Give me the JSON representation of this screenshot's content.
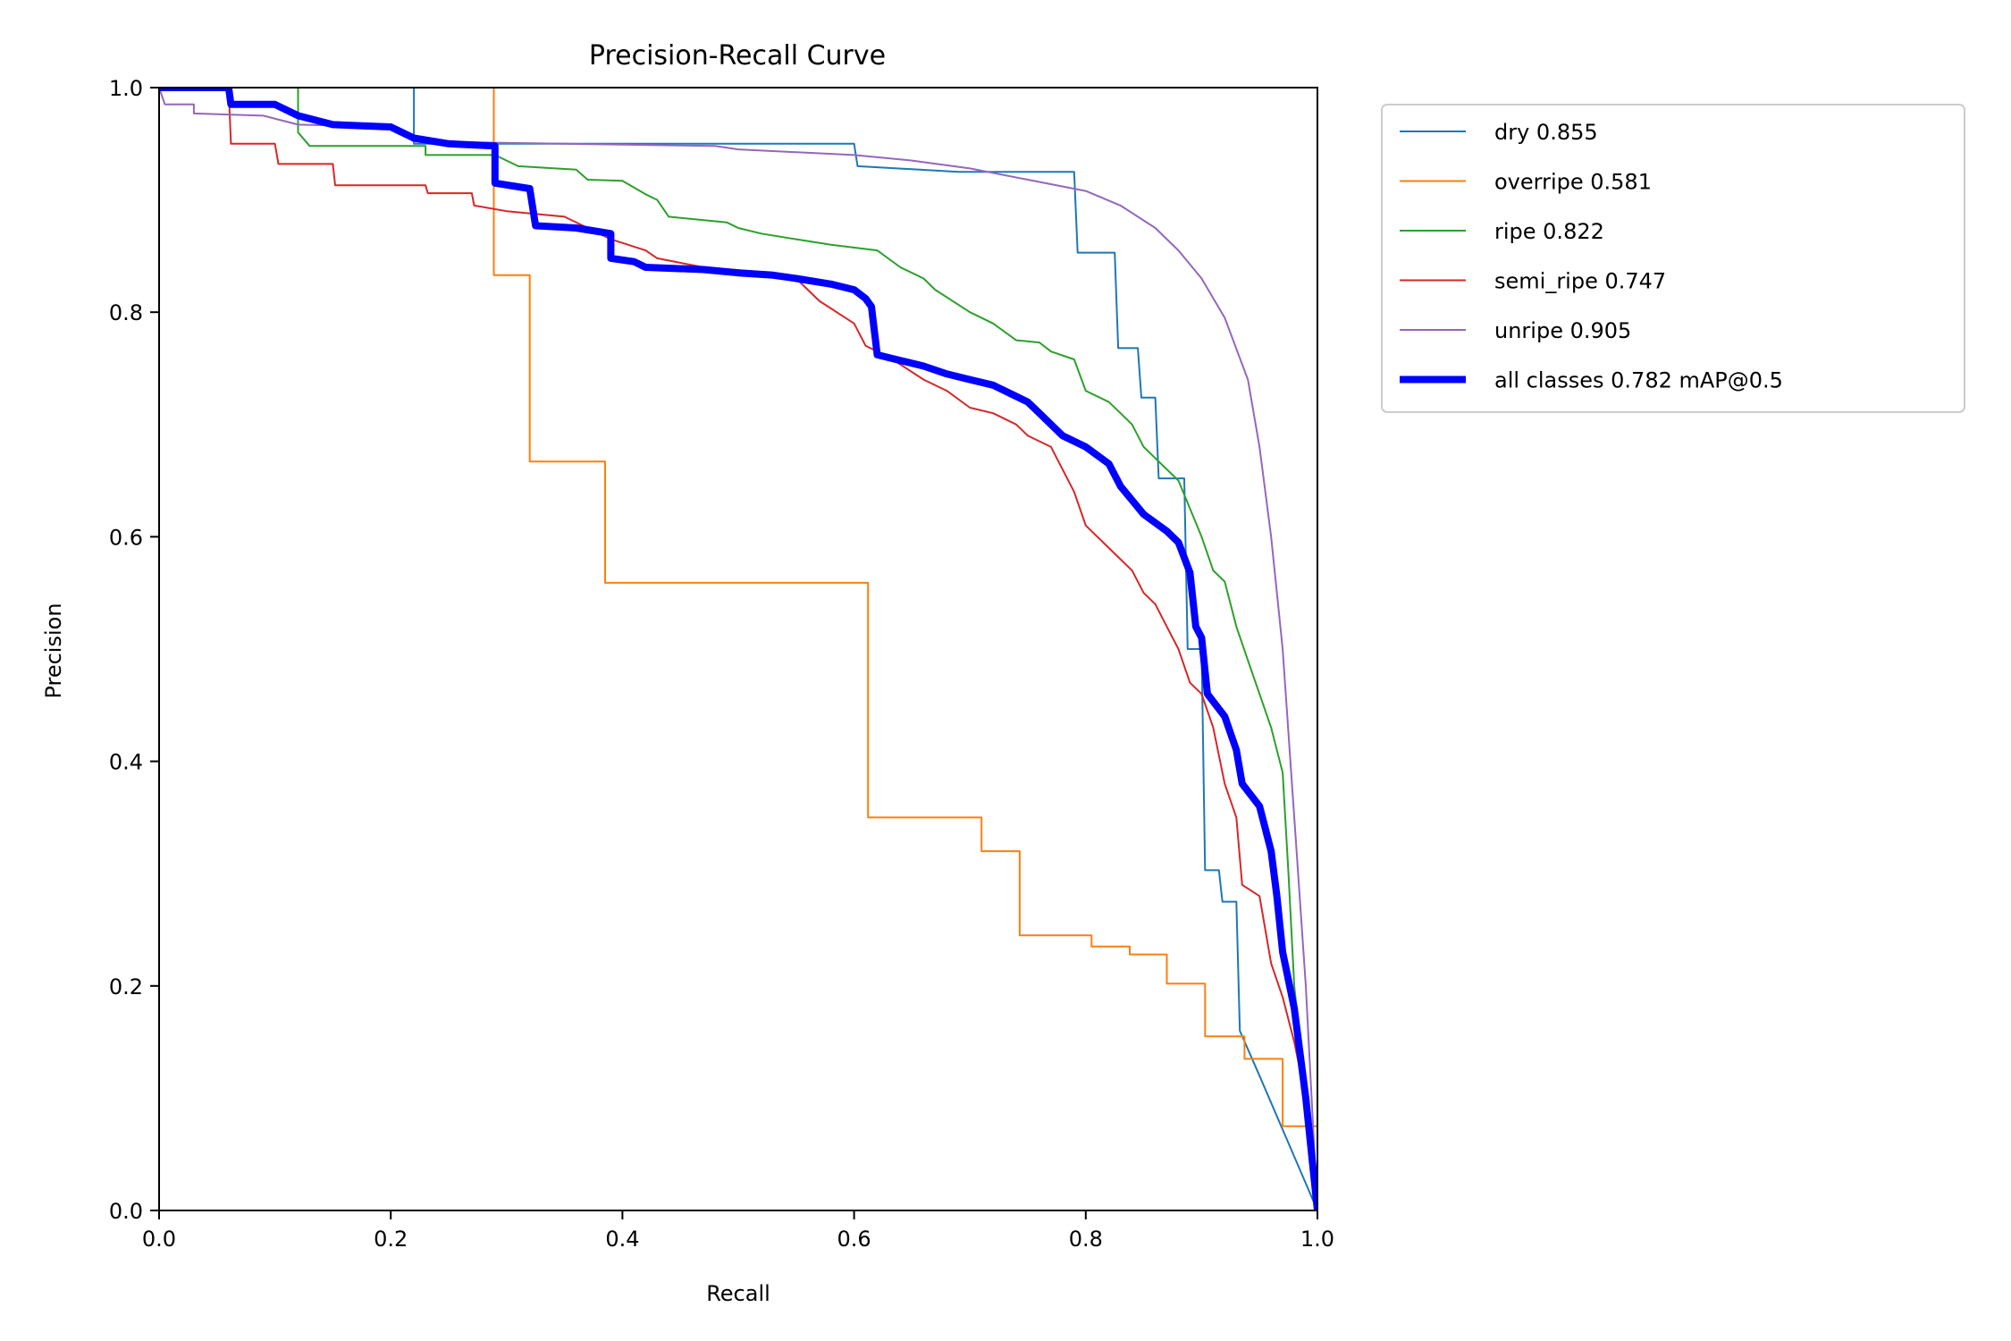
{
  "chart_data": {
    "type": "line",
    "title": "Precision-Recall Curve",
    "xlabel": "Recall",
    "ylabel": "Precision",
    "xlim": [
      0,
      1
    ],
    "ylim": [
      0,
      1
    ],
    "xticks": [
      "0.0",
      "0.2",
      "0.4",
      "0.6",
      "0.8",
      "1.0"
    ],
    "yticks": [
      "0.0",
      "0.2",
      "0.4",
      "0.6",
      "0.8",
      "1.0"
    ],
    "legend_position": "outside-top-right",
    "series": [
      {
        "name": "dry",
        "legend_label": "dry 0.855",
        "ap": 0.855,
        "color": "#1f77b4",
        "emphasis": false,
        "points": [
          [
            0,
            1.0
          ],
          [
            0.22,
            1.0
          ],
          [
            0.22,
            0.95
          ],
          [
            0.6,
            0.95
          ],
          [
            0.603,
            0.93
          ],
          [
            0.69,
            0.925
          ],
          [
            0.79,
            0.925
          ],
          [
            0.793,
            0.853
          ],
          [
            0.825,
            0.853
          ],
          [
            0.828,
            0.768
          ],
          [
            0.845,
            0.768
          ],
          [
            0.848,
            0.724
          ],
          [
            0.86,
            0.724
          ],
          [
            0.863,
            0.652
          ],
          [
            0.885,
            0.652
          ],
          [
            0.888,
            0.5
          ],
          [
            0.9,
            0.5
          ],
          [
            0.903,
            0.303
          ],
          [
            0.915,
            0.303
          ],
          [
            0.918,
            0.275
          ],
          [
            0.93,
            0.275
          ],
          [
            0.933,
            0.16
          ],
          [
            0.95,
            0.12
          ],
          [
            1.0,
            0.0
          ]
        ]
      },
      {
        "name": "overripe",
        "legend_label": "overripe 0.581",
        "ap": 0.581,
        "color": "#ff7f0e",
        "emphasis": false,
        "points": [
          [
            0,
            1.0
          ],
          [
            0.289,
            1.0
          ],
          [
            0.289,
            0.833
          ],
          [
            0.32,
            0.833
          ],
          [
            0.32,
            0.667
          ],
          [
            0.385,
            0.667
          ],
          [
            0.385,
            0.559
          ],
          [
            0.612,
            0.559
          ],
          [
            0.612,
            0.35
          ],
          [
            0.71,
            0.35
          ],
          [
            0.71,
            0.32
          ],
          [
            0.743,
            0.32
          ],
          [
            0.743,
            0.245
          ],
          [
            0.805,
            0.245
          ],
          [
            0.805,
            0.235
          ],
          [
            0.838,
            0.235
          ],
          [
            0.838,
            0.228
          ],
          [
            0.87,
            0.228
          ],
          [
            0.87,
            0.202
          ],
          [
            0.903,
            0.202
          ],
          [
            0.903,
            0.155
          ],
          [
            0.937,
            0.155
          ],
          [
            0.937,
            0.135
          ],
          [
            0.97,
            0.135
          ],
          [
            0.97,
            0.075
          ],
          [
            1.0,
            0.075
          ],
          [
            1.0,
            0.0
          ]
        ]
      },
      {
        "name": "ripe",
        "legend_label": "ripe 0.822",
        "ap": 0.822,
        "color": "#2ca02c",
        "emphasis": false,
        "points": [
          [
            0,
            1.0
          ],
          [
            0.12,
            1.0
          ],
          [
            0.12,
            0.96
          ],
          [
            0.13,
            0.948
          ],
          [
            0.23,
            0.948
          ],
          [
            0.23,
            0.94
          ],
          [
            0.29,
            0.94
          ],
          [
            0.31,
            0.93
          ],
          [
            0.36,
            0.927
          ],
          [
            0.37,
            0.918
          ],
          [
            0.4,
            0.917
          ],
          [
            0.42,
            0.905
          ],
          [
            0.43,
            0.9
          ],
          [
            0.44,
            0.885
          ],
          [
            0.49,
            0.88
          ],
          [
            0.5,
            0.875
          ],
          [
            0.52,
            0.87
          ],
          [
            0.55,
            0.865
          ],
          [
            0.58,
            0.86
          ],
          [
            0.62,
            0.855
          ],
          [
            0.64,
            0.84
          ],
          [
            0.66,
            0.83
          ],
          [
            0.67,
            0.82
          ],
          [
            0.7,
            0.8
          ],
          [
            0.72,
            0.79
          ],
          [
            0.74,
            0.775
          ],
          [
            0.76,
            0.773
          ],
          [
            0.77,
            0.765
          ],
          [
            0.79,
            0.758
          ],
          [
            0.8,
            0.73
          ],
          [
            0.82,
            0.72
          ],
          [
            0.83,
            0.71
          ],
          [
            0.84,
            0.7
          ],
          [
            0.85,
            0.68
          ],
          [
            0.87,
            0.66
          ],
          [
            0.88,
            0.65
          ],
          [
            0.9,
            0.6
          ],
          [
            0.91,
            0.57
          ],
          [
            0.92,
            0.56
          ],
          [
            0.93,
            0.52
          ],
          [
            0.94,
            0.49
          ],
          [
            0.95,
            0.46
          ],
          [
            0.96,
            0.43
          ],
          [
            0.97,
            0.39
          ],
          [
            0.975,
            0.3
          ],
          [
            0.98,
            0.2
          ],
          [
            0.99,
            0.1
          ],
          [
            1.0,
            0.0
          ]
        ]
      },
      {
        "name": "semi_ripe",
        "legend_label": "semi_ripe 0.747",
        "ap": 0.747,
        "color": "#d62728",
        "emphasis": false,
        "points": [
          [
            0,
            1.0
          ],
          [
            0.06,
            1.0
          ],
          [
            0.062,
            0.95
          ],
          [
            0.1,
            0.95
          ],
          [
            0.103,
            0.932
          ],
          [
            0.15,
            0.932
          ],
          [
            0.152,
            0.913
          ],
          [
            0.23,
            0.913
          ],
          [
            0.232,
            0.906
          ],
          [
            0.27,
            0.906
          ],
          [
            0.272,
            0.895
          ],
          [
            0.3,
            0.89
          ],
          [
            0.35,
            0.885
          ],
          [
            0.39,
            0.865
          ],
          [
            0.42,
            0.855
          ],
          [
            0.43,
            0.848
          ],
          [
            0.47,
            0.84
          ],
          [
            0.53,
            0.835
          ],
          [
            0.55,
            0.83
          ],
          [
            0.56,
            0.82
          ],
          [
            0.57,
            0.81
          ],
          [
            0.6,
            0.79
          ],
          [
            0.61,
            0.77
          ],
          [
            0.63,
            0.76
          ],
          [
            0.66,
            0.74
          ],
          [
            0.68,
            0.73
          ],
          [
            0.7,
            0.715
          ],
          [
            0.72,
            0.71
          ],
          [
            0.74,
            0.7
          ],
          [
            0.75,
            0.69
          ],
          [
            0.77,
            0.68
          ],
          [
            0.79,
            0.64
          ],
          [
            0.8,
            0.61
          ],
          [
            0.82,
            0.59
          ],
          [
            0.84,
            0.57
          ],
          [
            0.85,
            0.55
          ],
          [
            0.86,
            0.54
          ],
          [
            0.87,
            0.52
          ],
          [
            0.88,
            0.5
          ],
          [
            0.89,
            0.47
          ],
          [
            0.9,
            0.46
          ],
          [
            0.91,
            0.43
          ],
          [
            0.92,
            0.38
          ],
          [
            0.93,
            0.35
          ],
          [
            0.935,
            0.29
          ],
          [
            0.95,
            0.28
          ],
          [
            0.96,
            0.22
          ],
          [
            0.97,
            0.19
          ],
          [
            0.98,
            0.15
          ],
          [
            0.99,
            0.1
          ],
          [
            1.0,
            0.0
          ]
        ]
      },
      {
        "name": "unripe",
        "legend_label": "unripe 0.905",
        "ap": 0.905,
        "color": "#9467bd",
        "emphasis": false,
        "points": [
          [
            0,
            1.0
          ],
          [
            0.005,
            0.985
          ],
          [
            0.03,
            0.985
          ],
          [
            0.03,
            0.977
          ],
          [
            0.09,
            0.975
          ],
          [
            0.12,
            0.967
          ],
          [
            0.2,
            0.965
          ],
          [
            0.22,
            0.952
          ],
          [
            0.35,
            0.95
          ],
          [
            0.48,
            0.948
          ],
          [
            0.5,
            0.945
          ],
          [
            0.6,
            0.94
          ],
          [
            0.65,
            0.935
          ],
          [
            0.7,
            0.928
          ],
          [
            0.75,
            0.918
          ],
          [
            0.8,
            0.908
          ],
          [
            0.83,
            0.895
          ],
          [
            0.86,
            0.875
          ],
          [
            0.88,
            0.855
          ],
          [
            0.9,
            0.83
          ],
          [
            0.92,
            0.795
          ],
          [
            0.94,
            0.74
          ],
          [
            0.95,
            0.68
          ],
          [
            0.96,
            0.6
          ],
          [
            0.97,
            0.5
          ],
          [
            0.98,
            0.35
          ],
          [
            0.99,
            0.2
          ],
          [
            0.995,
            0.1
          ],
          [
            1.0,
            0.0
          ]
        ]
      },
      {
        "name": "all classes",
        "legend_label": "all classes 0.782 mAP@0.5",
        "ap": 0.782,
        "color": "#0000ff",
        "emphasis": true,
        "points": [
          [
            0,
            1.0
          ],
          [
            0.06,
            1.0
          ],
          [
            0.062,
            0.985
          ],
          [
            0.1,
            0.985
          ],
          [
            0.12,
            0.975
          ],
          [
            0.15,
            0.967
          ],
          [
            0.2,
            0.965
          ],
          [
            0.22,
            0.955
          ],
          [
            0.25,
            0.95
          ],
          [
            0.29,
            0.948
          ],
          [
            0.29,
            0.915
          ],
          [
            0.32,
            0.91
          ],
          [
            0.325,
            0.877
          ],
          [
            0.36,
            0.875
          ],
          [
            0.39,
            0.87
          ],
          [
            0.39,
            0.848
          ],
          [
            0.41,
            0.845
          ],
          [
            0.42,
            0.84
          ],
          [
            0.47,
            0.838
          ],
          [
            0.5,
            0.835
          ],
          [
            0.53,
            0.833
          ],
          [
            0.55,
            0.83
          ],
          [
            0.58,
            0.825
          ],
          [
            0.6,
            0.82
          ],
          [
            0.61,
            0.812
          ],
          [
            0.615,
            0.805
          ],
          [
            0.62,
            0.762
          ],
          [
            0.64,
            0.757
          ],
          [
            0.66,
            0.752
          ],
          [
            0.68,
            0.745
          ],
          [
            0.7,
            0.74
          ],
          [
            0.72,
            0.735
          ],
          [
            0.74,
            0.725
          ],
          [
            0.75,
            0.72
          ],
          [
            0.76,
            0.71
          ],
          [
            0.78,
            0.69
          ],
          [
            0.8,
            0.68
          ],
          [
            0.82,
            0.665
          ],
          [
            0.83,
            0.645
          ],
          [
            0.85,
            0.62
          ],
          [
            0.87,
            0.605
          ],
          [
            0.88,
            0.595
          ],
          [
            0.89,
            0.568
          ],
          [
            0.895,
            0.52
          ],
          [
            0.9,
            0.51
          ],
          [
            0.905,
            0.46
          ],
          [
            0.92,
            0.44
          ],
          [
            0.93,
            0.41
          ],
          [
            0.935,
            0.38
          ],
          [
            0.95,
            0.36
          ],
          [
            0.96,
            0.32
          ],
          [
            0.965,
            0.28
          ],
          [
            0.97,
            0.23
          ],
          [
            0.98,
            0.18
          ],
          [
            0.99,
            0.1
          ],
          [
            1.0,
            0.0
          ]
        ]
      }
    ]
  }
}
